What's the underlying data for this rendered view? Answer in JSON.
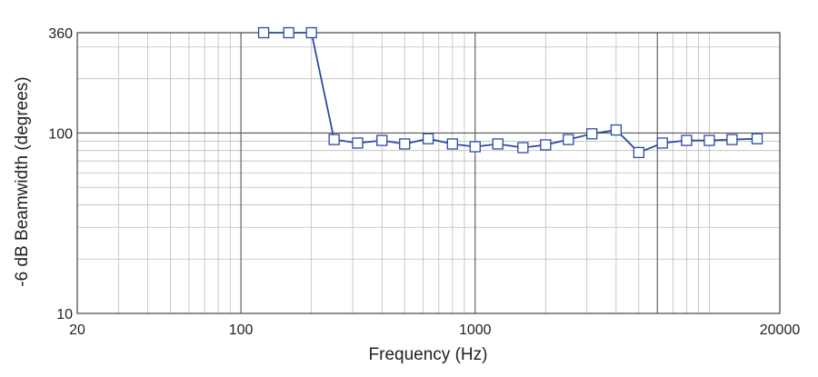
{
  "chart_data": {
    "type": "line",
    "title": "",
    "xlabel": "Frequency (Hz)",
    "ylabel": "-6 dB Beamwidth (degrees)",
    "x_scale": "log",
    "y_scale": "log",
    "xlim": [
      20,
      20000
    ],
    "ylim": [
      10,
      360
    ],
    "grid": true,
    "x_tick_labels": [
      "20",
      "100",
      "1000",
      "20000"
    ],
    "y_tick_labels": [
      "10",
      "100",
      "360"
    ],
    "colors": {
      "line": "#2b4ba0",
      "marker_fill": "#ffffff",
      "grid_minor": "#bdbdbd",
      "grid_major": "#555555"
    },
    "series": [
      {
        "marker": "square",
        "x": [
          125,
          160,
          200,
          250,
          315,
          400,
          500,
          630,
          800,
          1000,
          1250,
          1600,
          2000,
          2500,
          3150,
          4000,
          5000,
          6300,
          8000,
          10000,
          12500,
          16000
        ],
        "y": [
          360,
          360,
          360,
          92,
          88,
          91,
          87,
          93,
          87,
          84,
          87,
          83,
          86,
          92,
          99,
          104,
          78,
          88,
          91,
          91,
          92,
          93
        ]
      }
    ]
  }
}
